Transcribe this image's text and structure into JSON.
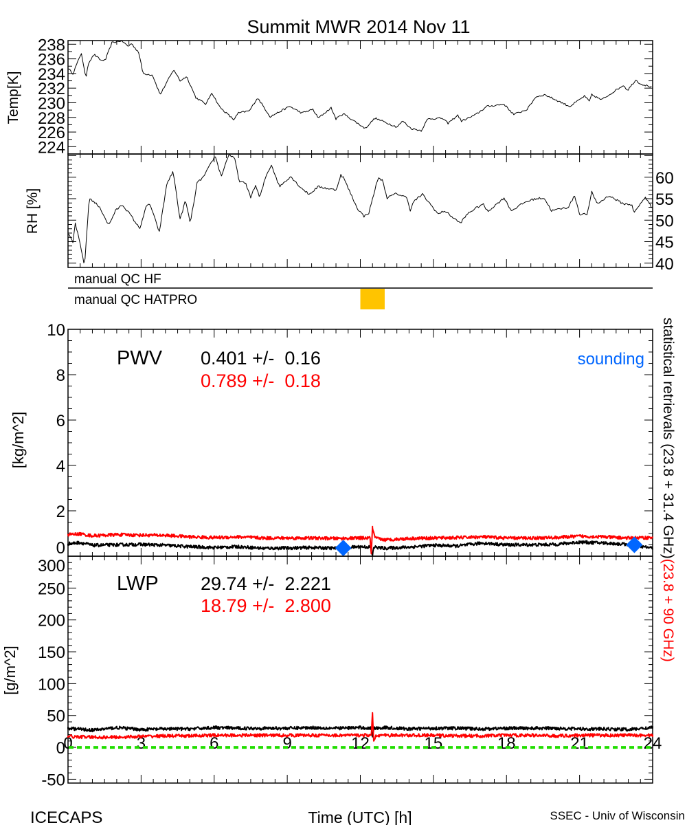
{
  "title": "Summit MWR 2014 Nov 11",
  "footer": {
    "left": "ICECAPS",
    "center": "Time (UTC) [h]",
    "right": "SSEC - Univ of Wisconsin"
  },
  "right_label": {
    "black": "statistical retrievals (23.8 + 31.4 GHz)",
    "red": "(23.8 + 90 GHz)"
  },
  "colors": {
    "series_main": "#000000",
    "series_alt": "#ff0000",
    "sounding": "#0066ff",
    "qc_flag": "#ffc400",
    "zero_line": "#22dd00"
  },
  "chart_data": [
    {
      "type": "line",
      "panel": "temperature",
      "ylabel": "Temp[K]",
      "ylim": [
        223,
        238.5
      ],
      "xlim": [
        0,
        24
      ],
      "yticks": [
        224,
        226,
        228,
        230,
        232,
        234,
        236,
        238
      ],
      "ytick_side": "left",
      "series": [
        {
          "x": [
            0,
            0.2,
            0.55,
            0.73,
            0.83,
            1.07,
            1.35,
            1.53,
            1.8,
            2.2,
            2.47,
            2.6,
            2.9,
            3.08,
            3.47,
            3.78,
            4.17,
            4.35,
            4.6,
            4.87,
            5.25,
            5.67,
            5.9,
            6.23,
            6.8,
            7.0,
            7.45,
            7.78,
            8.3,
            9.1,
            9.6,
            10.05,
            10.27,
            10.8,
            11.0,
            11.3,
            12.2,
            12.6,
            13.5,
            13.75,
            14.07,
            14.5,
            14.77,
            15.35,
            15.6,
            16.0,
            16.15,
            16.7,
            17.2,
            17.9,
            18.3,
            18.85,
            19.2,
            19.57,
            20.6,
            21.2,
            21.4,
            21.5,
            21.9,
            22.8,
            22.97,
            23.3,
            23.5,
            24
          ],
          "y": [
            234.7,
            234.0,
            236.8,
            233.3,
            235.4,
            236.6,
            235.8,
            235.8,
            238.2,
            238.5,
            237.7,
            238.1,
            236.9,
            234.0,
            233.8,
            231.1,
            233.5,
            234.5,
            233.0,
            233.6,
            230.7,
            229.8,
            231.4,
            229.4,
            227.7,
            228.6,
            228.9,
            230.7,
            228.1,
            229.5,
            228.6,
            229.1,
            227.9,
            229.3,
            227.8,
            228.5,
            226.5,
            227.9,
            226.7,
            227.5,
            226.5,
            226.2,
            227.8,
            227.9,
            227.2,
            228.3,
            227.5,
            228.3,
            229.5,
            229.8,
            228.4,
            229.1,
            230.8,
            231.1,
            229.5,
            230.9,
            230.2,
            231.1,
            230.4,
            232.4,
            231.7,
            233.1,
            232.6,
            232.1
          ]
        }
      ]
    },
    {
      "type": "line",
      "panel": "relative-humidity",
      "ylabel": "RH [%]",
      "ylim": [
        39,
        65.4
      ],
      "xlim": [
        0,
        24
      ],
      "yticks": [
        40,
        45,
        50,
        55,
        60
      ],
      "ytick_side": "right",
      "series": [
        {
          "x": [
            0,
            0.2,
            0.3,
            0.45,
            0.68,
            0.87,
            1.16,
            1.35,
            1.67,
            1.95,
            2.23,
            2.57,
            2.94,
            3.22,
            3.36,
            3.75,
            4.06,
            4.32,
            4.6,
            4.82,
            5.02,
            5.3,
            5.58,
            6.04,
            6.29,
            6.6,
            6.85,
            7.02,
            7.3,
            7.5,
            7.7,
            7.87,
            8.12,
            8.35,
            8.68,
            9.14,
            9.52,
            9.9,
            10.27,
            11.0,
            11.2,
            11.3,
            11.87,
            12.15,
            12.35,
            12.72,
            12.9,
            13.1,
            13.48,
            13.93,
            14.04,
            14.2,
            14.55,
            15.2,
            15.45,
            16.1,
            16.44,
            17.03,
            17.23,
            17.9,
            18.2,
            18.73,
            19.12,
            19.54,
            19.85,
            20.53,
            20.8,
            21.0,
            21.32,
            21.5,
            21.74,
            22.2,
            22.8,
            23.15,
            23.24,
            23.7,
            24
          ],
          "y": [
            46.9,
            44.8,
            49.3,
            45.6,
            39.4,
            55.2,
            53.8,
            52.5,
            48.8,
            52.2,
            53.6,
            51.2,
            48.0,
            53.3,
            53.8,
            47.2,
            58.6,
            61.3,
            50.1,
            54.6,
            49.3,
            58.6,
            60.2,
            65.0,
            60.2,
            65.3,
            64.2,
            59.2,
            58.4,
            55.4,
            58.1,
            55.2,
            60.2,
            62.9,
            57.8,
            60.2,
            57.8,
            56.0,
            57.8,
            57.0,
            60.5,
            60.0,
            52.8,
            50.9,
            51.7,
            59.7,
            59.4,
            55.2,
            56.2,
            55.2,
            52.2,
            54.4,
            56.0,
            51.4,
            52.2,
            49.3,
            51.7,
            53.8,
            52.0,
            55.2,
            52.2,
            54.1,
            54.9,
            55.2,
            52.2,
            53.0,
            55.7,
            51.4,
            51.4,
            56.5,
            53.8,
            55.7,
            53.8,
            53.6,
            51.7,
            55.4,
            52.5
          ]
        }
      ]
    },
    {
      "type": "table",
      "panel": "qc-flags",
      "rows": [
        {
          "label": "manual QC HF",
          "flagged": []
        },
        {
          "label": "manual QC HATPRO",
          "flagged": [
            [
              12.0,
              13.0
            ]
          ]
        }
      ]
    },
    {
      "type": "line",
      "panel": "pwv",
      "ylabel": "[kg/m^2]",
      "ylim": [
        0,
        10
      ],
      "xlim": [
        0,
        24
      ],
      "yticks": [
        0,
        2,
        4,
        6,
        8,
        10
      ],
      "ytick_side": "left",
      "annotation": {
        "name": "PWV",
        "main": "0.401 +/-  0.16",
        "alt": "0.789 +/-  0.18",
        "sounding_label": "sounding"
      },
      "series": [
        {
          "color": "black",
          "x": [
            0,
            0.5,
            1,
            2,
            3,
            4,
            5,
            6,
            7,
            8,
            9,
            10,
            11,
            12,
            12.4,
            12.5,
            12.55,
            13,
            14,
            15,
            16,
            17,
            18,
            19,
            20,
            21,
            22,
            23,
            24
          ],
          "y": [
            0.55,
            0.6,
            0.48,
            0.5,
            0.52,
            0.48,
            0.42,
            0.38,
            0.42,
            0.35,
            0.36,
            0.38,
            0.35,
            0.42,
            0.4,
            0.02,
            0.4,
            0.35,
            0.4,
            0.48,
            0.45,
            0.58,
            0.5,
            0.5,
            0.52,
            0.62,
            0.58,
            0.52,
            0.35
          ]
        },
        {
          "color": "red",
          "x": [
            0,
            0.5,
            1,
            2,
            3,
            4,
            5,
            6,
            7,
            8,
            9,
            10,
            11,
            12,
            12.4,
            12.45,
            12.5,
            12.6,
            13,
            14,
            15,
            16,
            17,
            18,
            19,
            20,
            21,
            22,
            23,
            24
          ],
          "y": [
            0.95,
            0.98,
            0.9,
            0.95,
            0.93,
            0.92,
            0.85,
            0.82,
            0.85,
            0.8,
            0.8,
            0.8,
            0.78,
            0.8,
            0.8,
            0.1,
            1.25,
            0.8,
            0.72,
            0.78,
            0.8,
            0.82,
            0.85,
            0.8,
            0.8,
            0.82,
            0.88,
            0.85,
            0.8,
            0.82
          ]
        }
      ],
      "soundings": {
        "x": [
          11.3,
          23.25
        ],
        "y": [
          0.36,
          0.5
        ]
      }
    },
    {
      "type": "line",
      "panel": "lwp",
      "ylabel": "[g/m^2]",
      "ylim": [
        -56,
        300
      ],
      "xlim": [
        0,
        24
      ],
      "yticks": [
        -50,
        0,
        50,
        100,
        150,
        200,
        250,
        300
      ],
      "ytick_side": "left",
      "xticks": [
        0,
        3,
        6,
        9,
        12,
        15,
        18,
        21,
        24
      ],
      "annotation": {
        "name": "LWP",
        "main": "29.74 +/-  2.221",
        "alt": "18.79 +/-  2.800"
      },
      "series": [
        {
          "color": "black",
          "x": [
            0,
            1,
            2,
            3,
            4,
            5,
            6,
            7,
            8,
            9,
            10,
            11,
            12,
            12.45,
            12.5,
            12.55,
            13,
            14,
            15,
            16,
            17,
            18,
            19,
            20,
            21,
            22,
            23,
            24
          ],
          "y": [
            30,
            27,
            31,
            28,
            29,
            29,
            31,
            30,
            30,
            30,
            31,
            30,
            31,
            30,
            18,
            30,
            31,
            29,
            30,
            30,
            29,
            30,
            30,
            30,
            29,
            29,
            28,
            31
          ]
        },
        {
          "color": "red",
          "x": [
            0,
            1,
            2,
            3,
            4,
            5,
            6,
            7,
            8,
            9,
            10,
            11,
            12,
            12.45,
            12.5,
            12.55,
            12.65,
            13,
            14,
            15,
            16,
            17,
            18,
            19,
            20,
            21,
            22,
            23,
            24
          ],
          "y": [
            17,
            16,
            16,
            17,
            18,
            18,
            19,
            19,
            19,
            19,
            19,
            19,
            19,
            19,
            52,
            10,
            19,
            19,
            19,
            19,
            18,
            18,
            19,
            19,
            18,
            19,
            19,
            19,
            19
          ]
        }
      ],
      "zero_line": 0
    }
  ]
}
